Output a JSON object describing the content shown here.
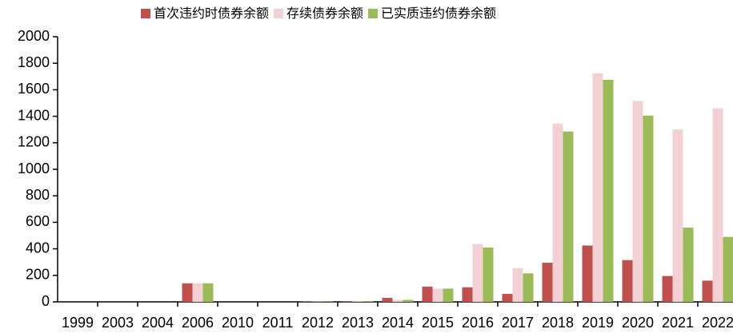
{
  "chart_data": {
    "type": "bar",
    "categories": [
      "1999",
      "2003",
      "2004",
      "2006",
      "2010",
      "2011",
      "2012",
      "2013",
      "2014",
      "2015",
      "2016",
      "2017",
      "2018",
      "2019",
      "2020",
      "2021",
      "2022"
    ],
    "series": [
      {
        "name": "首次违约时债券余额",
        "color": "#c0504d",
        "values": [
          0,
          0,
          0,
          140,
          0,
          0,
          3,
          5,
          30,
          115,
          110,
          60,
          295,
          425,
          315,
          195,
          160
        ]
      },
      {
        "name": "存续债券余额",
        "color": "#f2d0d3",
        "values": [
          0,
          0,
          0,
          140,
          0,
          0,
          3,
          5,
          15,
          100,
          435,
          255,
          1345,
          1725,
          1515,
          1300,
          1460
        ]
      },
      {
        "name": "已实质违约债券余额",
        "color": "#9bbb59",
        "values": [
          0,
          0,
          0,
          140,
          0,
          0,
          3,
          5,
          15,
          100,
          410,
          215,
          1285,
          1675,
          1405,
          560,
          490
        ]
      }
    ],
    "ylim": [
      0,
      2000
    ],
    "yticks": [
      0,
      200,
      400,
      600,
      800,
      1000,
      1200,
      1400,
      1600,
      1800,
      2000
    ]
  }
}
